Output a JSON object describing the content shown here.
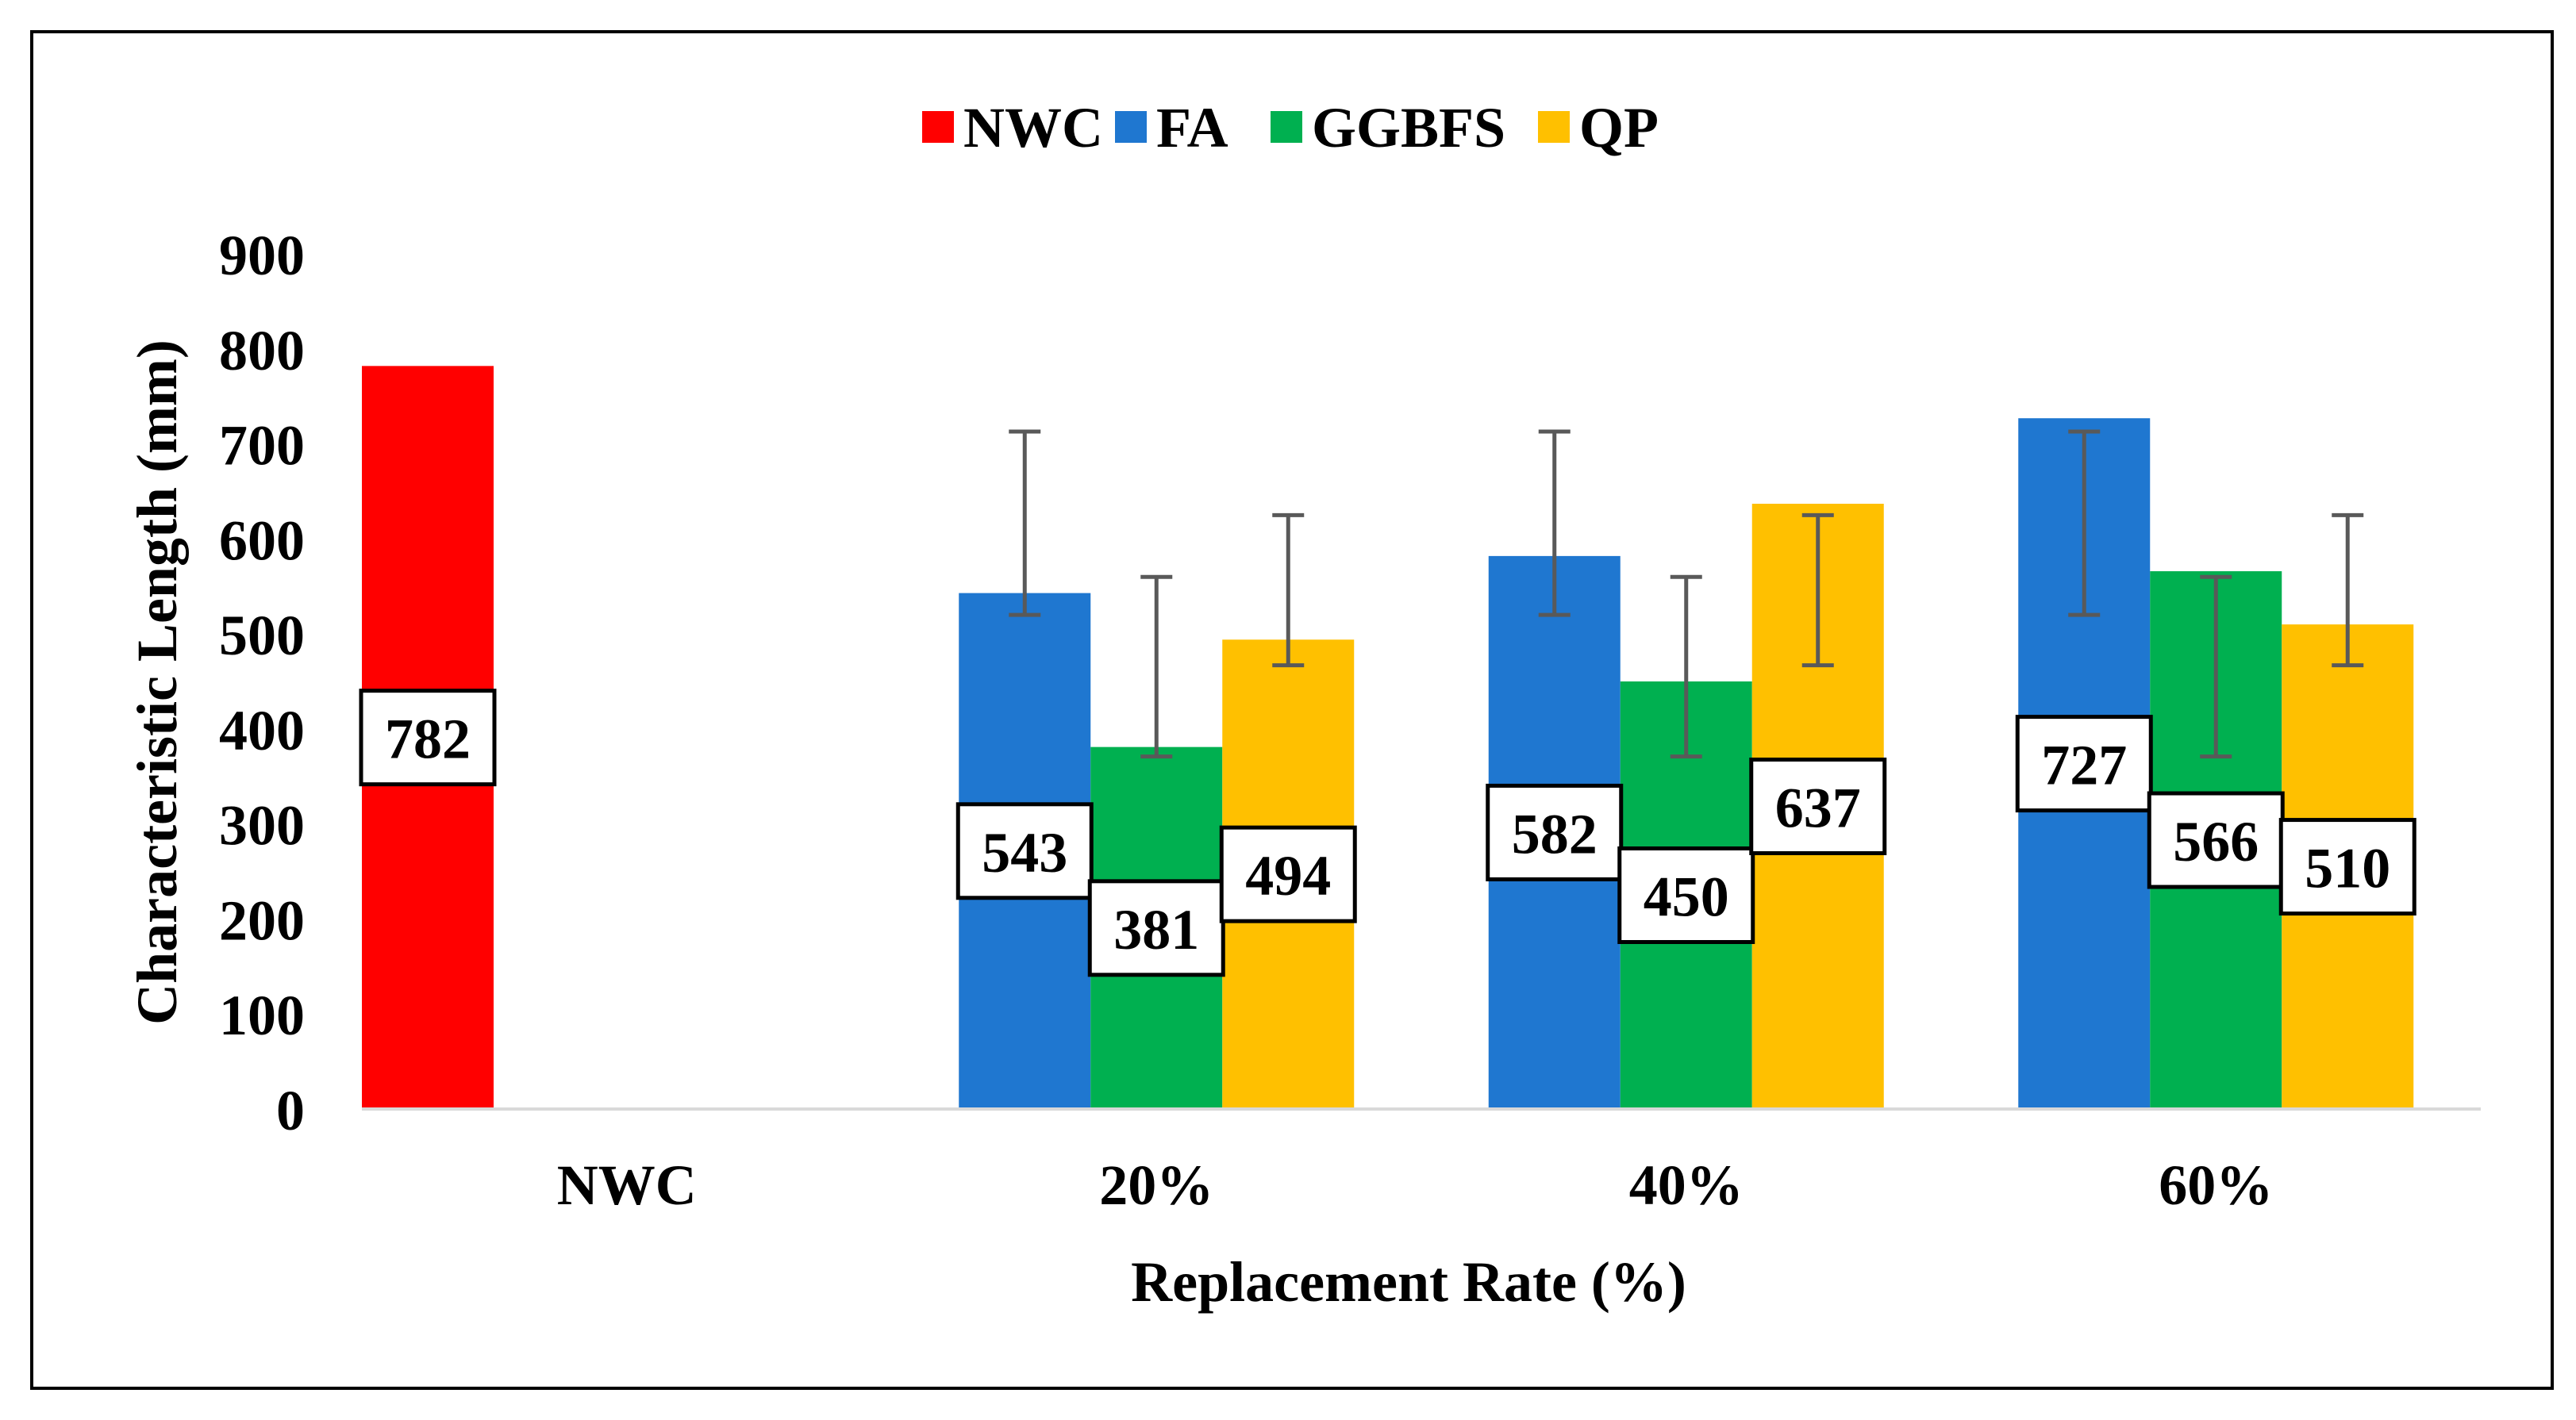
{
  "chart_data": {
    "type": "bar",
    "title": "",
    "xlabel": "Replacement Rate (%)",
    "ylabel": "Characteristic Length (mm)",
    "ylim": [
      0,
      900
    ],
    "yticks": [
      0,
      100,
      200,
      300,
      400,
      500,
      600,
      700,
      800,
      900
    ],
    "ytick_labels": [
      "0",
      "100",
      "200",
      "300",
      "400",
      "500",
      "600",
      "700",
      "800",
      "900"
    ],
    "grid": false,
    "legend_position": "top-center",
    "categories": [
      "NWC",
      "20%",
      "40%",
      "60%"
    ],
    "series": [
      {
        "name": "NWC",
        "color": "#FF0000",
        "values": [
          782,
          null,
          null,
          null
        ],
        "labels": [
          "782",
          null,
          null,
          null
        ],
        "error_low": [
          null,
          null,
          null,
          null
        ],
        "error_high": [
          null,
          null,
          null,
          null
        ]
      },
      {
        "name": "FA",
        "color": "#1F77D0",
        "values": [
          null,
          543,
          582,
          727
        ],
        "labels": [
          null,
          "543",
          "582",
          "727"
        ],
        "error_low": [
          null,
          520,
          520,
          520
        ],
        "error_high": [
          null,
          713,
          713,
          713
        ]
      },
      {
        "name": "GGBFS",
        "color": "#00B050",
        "values": [
          null,
          381,
          450,
          566
        ],
        "labels": [
          null,
          "381",
          "450",
          "566"
        ],
        "error_low": [
          null,
          371,
          371,
          371
        ],
        "error_high": [
          null,
          560,
          560,
          560
        ]
      },
      {
        "name": "QP",
        "color": "#FFC000",
        "values": [
          null,
          494,
          637,
          510
        ],
        "labels": [
          null,
          "494",
          "637",
          "510"
        ],
        "error_low": [
          null,
          467,
          467,
          467
        ],
        "error_high": [
          null,
          625,
          625,
          625
        ]
      }
    ]
  }
}
